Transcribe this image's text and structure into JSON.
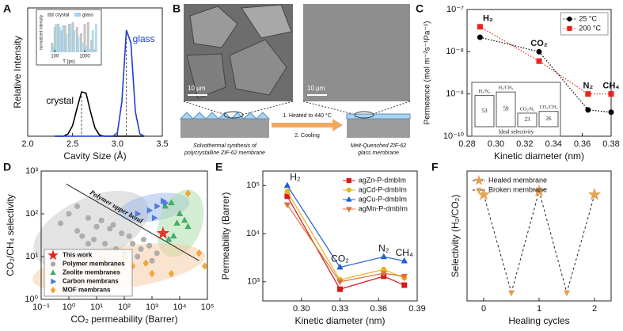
{
  "chart_data": [
    {
      "panel": "A",
      "type": "line",
      "xlabel": "Cavity Size (Å)",
      "ylabel": "Relative Intensity",
      "xlim": [
        2.0,
        3.5
      ],
      "xticks": [
        {
          "value": 2.0,
          "label": "2.0"
        },
        {
          "value": 2.5,
          "label": "2.5"
        },
        {
          "value": 3.0,
          "label": "3.0"
        },
        {
          "value": 3.5,
          "label": "3.5"
        }
      ],
      "ylim": [
        0,
        1.1
      ],
      "legend": "inline",
      "x": [
        2.3,
        2.35,
        2.4,
        2.45,
        2.5,
        2.55,
        2.6,
        2.65,
        2.7,
        2.75,
        2.8,
        2.85,
        2.9,
        2.95,
        3.0,
        3.05,
        3.1,
        3.15,
        3.2,
        3.25,
        3.3
      ],
      "series": [
        {
          "name": "crystal",
          "color": "#000000",
          "values": [
            0,
            0,
            0,
            0.02,
            0.09,
            0.24,
            0.38,
            0.37,
            0.21,
            0.07,
            0.01,
            0,
            0,
            0,
            0,
            0,
            0,
            0,
            0,
            0,
            0
          ]
        },
        {
          "name": "glass",
          "color": "#1f3fd1",
          "values": [
            0,
            0,
            0,
            0,
            0,
            0,
            0,
            0,
            0,
            0,
            0,
            0,
            0,
            0,
            0.03,
            0.3,
            0.91,
            0.8,
            0.21,
            0.02,
            0
          ]
        }
      ],
      "inset": {
        "type": "bar",
        "xlabel": "T (ps)",
        "ylabel": "normalized intensity",
        "log_x": true,
        "xlim": [
          50,
          3000
        ],
        "xticks": [
          100,
          1000
        ],
        "ylim": [
          0,
          1
        ],
        "x": [
          80,
          100,
          130,
          170,
          220,
          300,
          400,
          550,
          750,
          1000,
          1300,
          1700,
          2200
        ],
        "series": [
          {
            "name": "crystal",
            "color": "#b5b5b5",
            "values": [
              0.3,
              0.8,
              0.9,
              0.7,
              0.85,
              0.9,
              0.95,
              0.8,
              0.6,
              0.9,
              0.95,
              0.4,
              0.1
            ]
          },
          {
            "name": "glass",
            "color": "#9fd3ee",
            "values": [
              0.2,
              0.9,
              0.8,
              0.85,
              0.6,
              0.9,
              0.7,
              0.5,
              0.3,
              0.2,
              0.1,
              0.7,
              0.9
            ]
          }
        ]
      }
    },
    {
      "panel": "C",
      "type": "line",
      "xlabel": "Kinetic diameter (nm)",
      "ylabel": "Permeance (mol m⁻²s⁻¹Pa⁻¹)",
      "xlim": [
        0.28,
        0.38
      ],
      "xticks": [
        0.28,
        {
          "value": 0.3,
          "label": "0.30"
        },
        0.32,
        0.34,
        0.36,
        0.38
      ],
      "log_y": true,
      "ylim": [
        1e-10,
        1e-07
      ],
      "yticks": [
        {
          "value": 1e-10,
          "label": "10⁻¹⁰"
        },
        {
          "value": 1e-09,
          "label": "10⁻⁹"
        },
        {
          "value": 1e-08,
          "label": "10⁻⁸"
        },
        {
          "value": 1e-07,
          "label": "10⁻⁷"
        }
      ],
      "legend": "upper right",
      "x": [
        0.289,
        0.33,
        0.364,
        0.38
      ],
      "gas_labels": [
        "H₂",
        "CO₂",
        "N₂",
        "CH₄"
      ],
      "series": [
        {
          "name": "25 °C",
          "color": "#000000",
          "marker": "circle",
          "dash": "1.5,2",
          "values": [
            2.2e-08,
            1e-08,
            4.2e-10,
            3.7e-10
          ]
        },
        {
          "name": "200 °C",
          "color": "#e8241c",
          "marker": "square",
          "dash": "1.5,2",
          "values": [
            3.9e-08,
            6e-09,
            1e-09,
            1e-09
          ]
        }
      ],
      "inset": {
        "type": "bar",
        "xlabel": "Ideal selectivity",
        "categories": [
          "H₂/N₂",
          "H₂/CH₄",
          "CO₂/N₂",
          "CO₂/CH₄"
        ],
        "values": [
          53,
          59,
          23,
          26
        ],
        "ylim": [
          0,
          70
        ]
      }
    },
    {
      "panel": "D",
      "type": "scatter",
      "xlabel": "CO₂ permeability (Barrer)",
      "ylabel": "CO₂/CH₄ selectivity",
      "log_x": true,
      "xlim": [
        0.1,
        100000
      ],
      "xticks": [
        {
          "value": 0.1,
          "label": "10⁻¹"
        },
        {
          "value": 1,
          "label": "10⁰"
        },
        {
          "value": 10,
          "label": "10¹"
        },
        {
          "value": 100,
          "label": "10²"
        },
        {
          "value": 1000,
          "label": "10³"
        },
        {
          "value": 10000,
          "label": "10⁴"
        },
        {
          "value": 100000,
          "label": "10⁵"
        }
      ],
      "log_y": true,
      "ylim": [
        1,
        1000
      ],
      "yticks": [
        {
          "value": 1,
          "label": "10⁰"
        },
        {
          "value": 10,
          "label": "10¹"
        },
        {
          "value": 100,
          "label": "10²"
        },
        {
          "value": 1000,
          "label": "10³"
        }
      ],
      "legend": "lower left",
      "legend_frame": true,
      "upper_bound": {
        "label": "Polymer upper bond",
        "x": [
          0.8,
          50000
        ],
        "values": [
          500,
          8
        ]
      },
      "series": [
        {
          "name": "This work",
          "color": "#e8241c",
          "marker": "star",
          "x": [
            2500
          ],
          "values": [
            35
          ]
        },
        {
          "name": "Polymer membranes",
          "color": "#a9a9a9",
          "marker": "circle",
          "x": [
            0.5,
            1,
            2,
            3,
            5,
            8,
            10,
            20,
            30,
            50,
            80,
            100,
            200,
            300,
            500,
            800,
            1000,
            2,
            5,
            15,
            40,
            150,
            400,
            1500
          ],
          "values": [
            60,
            100,
            40,
            30,
            80,
            25,
            50,
            20,
            45,
            15,
            35,
            12,
            20,
            10,
            25,
            18,
            8,
            150,
            20,
            70,
            55,
            30,
            15,
            12
          ]
        },
        {
          "name": "Zeolite membranes",
          "color": "#3aa860",
          "marker": "triangle",
          "x": [
            3000,
            5000,
            8000,
            10000,
            6000,
            15000,
            4000,
            20000
          ],
          "values": [
            150,
            180,
            60,
            100,
            30,
            70,
            25,
            50
          ]
        },
        {
          "name": "Carbon membrans",
          "color": "#4a78d8",
          "marker": "triangle-right",
          "x": [
            300,
            800,
            1500,
            2500,
            3000,
            1200
          ],
          "values": [
            100,
            120,
            150,
            200,
            180,
            80
          ]
        },
        {
          "name": "MOF membrans",
          "color": "#f0a030",
          "marker": "diamond",
          "x": [
            20,
            50,
            200,
            1000,
            5000,
            20000,
            50000,
            80000,
            100,
            600
          ],
          "values": [
            8,
            5,
            6,
            4,
            4,
            300,
            12,
            6,
            10,
            7
          ]
        }
      ]
    },
    {
      "panel": "E",
      "type": "line",
      "xlabel": "Kinetic diameter (nm)",
      "ylabel": "Permeability (Barrer)",
      "xlim": [
        0.27,
        0.39
      ],
      "xticks": [
        {
          "value": 0.3,
          "label": "0.30"
        },
        0.33,
        0.36,
        0.39
      ],
      "log_y": true,
      "ylim": [
        400,
        200000
      ],
      "yticks": [
        {
          "value": 1000,
          "label": "10³"
        },
        {
          "value": 10000,
          "label": "10⁴"
        },
        {
          "value": 100000,
          "label": "10⁵"
        }
      ],
      "legend": "upper right",
      "x": [
        0.289,
        0.33,
        0.364,
        0.38
      ],
      "gas_labels": [
        "H₂",
        "CO₂",
        "N₂",
        "CH₄"
      ],
      "series": [
        {
          "name": "agZn-P-dmbIm",
          "color": "#d7191c",
          "marker": "square",
          "values": [
            60000,
            700,
            1300,
            850
          ]
        },
        {
          "name": "agCd-P-dmbIm",
          "color": "#e6b422",
          "marker": "circle",
          "values": [
            75000,
            1100,
            1800,
            1200
          ]
        },
        {
          "name": "agCu-P-dmbIm",
          "color": "#1f5fd1",
          "marker": "triangle",
          "values": [
            100000,
            2000,
            3300,
            2700
          ]
        },
        {
          "name": "agMn-P-dmbIm",
          "color": "#e0703a",
          "marker": "triangle-down",
          "values": [
            40000,
            1000,
            1500,
            1300
          ]
        }
      ]
    },
    {
      "panel": "F",
      "type": "scatter",
      "xlabel": "Healing cycles",
      "ylabel": "Selectivity (H₂/CO₂)",
      "xlim": [
        -0.3,
        2.3
      ],
      "xticks": [
        0,
        1,
        2
      ],
      "ylim": [
        0,
        110
      ],
      "legend": "upper left",
      "connector": "alternate",
      "series": [
        {
          "name": "Healed membrane",
          "color": "#e0a050",
          "marker": "star",
          "x": [
            0,
            1,
            2
          ],
          "values": [
            90,
            93,
            90
          ]
        },
        {
          "name": "Broken membrane",
          "color": "#e0a050",
          "marker": "triangle-down",
          "x": [
            0.5,
            1.5
          ],
          "values": [
            7,
            7
          ]
        }
      ]
    }
  ],
  "figure_b": {
    "panel": "B",
    "scale_bar_left": "10 µm",
    "scale_bar_right": "10 µm",
    "step_1": "1. Heated to 440 °C",
    "step_2": "2. Cooling",
    "caption_left": [
      "Solvothermal synthesis of",
      "polycrystalline ZIF-62 membrane"
    ],
    "caption_right": [
      "Melt-Quenched ZIF-62",
      "glass membrane"
    ]
  }
}
